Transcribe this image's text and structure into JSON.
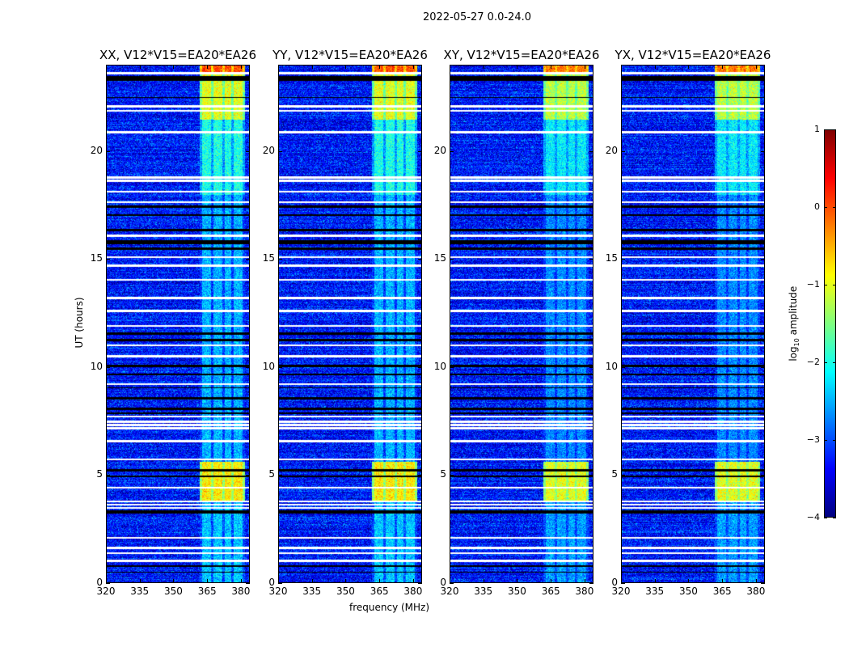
{
  "chart_data": {
    "type": "heatmap",
    "suptitle": "2022-05-27 0.0-24.0",
    "panels": [
      {
        "title": "XX, V12*V15=EA20*EA26",
        "seed": 11
      },
      {
        "title": "YY, V12*V15=EA20*EA26",
        "seed": 23
      },
      {
        "title": "XY, V12*V15=EA20*EA26",
        "seed": 37
      },
      {
        "title": "YX, V12*V15=EA20*EA26",
        "seed": 51
      }
    ],
    "xlabel": "frequency (MHz)",
    "ylabel": "UT (hours)",
    "xlim": [
      320,
      384
    ],
    "ylim": [
      0,
      24
    ],
    "xticks": [
      "320",
      "335",
      "350",
      "365",
      "380"
    ],
    "xtick_values": [
      320,
      335,
      350,
      365,
      380
    ],
    "yticks": [
      "0",
      "5",
      "10",
      "15",
      "20"
    ],
    "ytick_values": [
      0,
      5,
      10,
      15,
      20
    ],
    "colorbar": {
      "label": "log10 amplitude",
      "label_main": "log",
      "label_sub": "10",
      "label_rest": " amplitude",
      "vmin": -4,
      "vmax": 1,
      "ticks": [
        "1",
        "0",
        "−1",
        "−2",
        "−3",
        "−4"
      ],
      "tick_values": [
        1,
        0,
        -1,
        -2,
        -3,
        -4
      ],
      "colormap": "jet"
    },
    "background_level": -3.3,
    "rfi_channels_mhz": [
      [
        363,
        367
      ],
      [
        368,
        372
      ],
      [
        373,
        376
      ],
      [
        377,
        381
      ]
    ],
    "rfi_levels": [
      {
        "t": [
          23.7,
          24
        ],
        "level": 0.0
      },
      {
        "t": [
          21.5,
          23.7
        ],
        "level": -1.0
      },
      {
        "t": [
          18,
          21.5
        ],
        "level": -2.0
      },
      {
        "t": [
          3.7,
          5.6
        ],
        "level": -0.8
      },
      {
        "t": [
          0,
          3.7
        ],
        "level": -2.4
      },
      {
        "t": [
          5.6,
          18
        ],
        "level": -2.5
      }
    ],
    "flagged_hours_white": [
      23.65,
      22.1,
      21.9,
      20.9,
      18.8,
      18.65,
      18.15,
      17.65,
      16.1,
      15.1,
      14.7,
      14.05,
      13.2,
      12.6,
      11.9,
      11.0,
      10.5,
      9.2,
      7.7,
      7.45,
      7.3,
      7.15,
      6.55,
      5.7,
      4.4,
      3.75,
      3.6,
      3.45,
      2.06,
      1.6,
      1.35,
      1.0
    ],
    "flagged_hours_black": [
      [
        23.3,
        23.5
      ],
      [
        22.5,
        22.55
      ],
      [
        17.4,
        17.5
      ],
      [
        17.0,
        17.1
      ],
      [
        16.3,
        16.4
      ],
      [
        15.7,
        15.9
      ],
      [
        15.45,
        15.55
      ],
      [
        11.5,
        11.6
      ],
      [
        11.2,
        11.3
      ],
      [
        10.0,
        10.1
      ],
      [
        9.6,
        9.7
      ],
      [
        9.0,
        9.05
      ],
      [
        8.5,
        8.6
      ],
      [
        8.0,
        8.1
      ],
      [
        7.8,
        7.9
      ],
      [
        5.15,
        5.25
      ],
      [
        4.9,
        4.95
      ],
      [
        3.2,
        3.35
      ],
      [
        0.7,
        0.8
      ],
      [
        0.45,
        0.5
      ]
    ]
  }
}
